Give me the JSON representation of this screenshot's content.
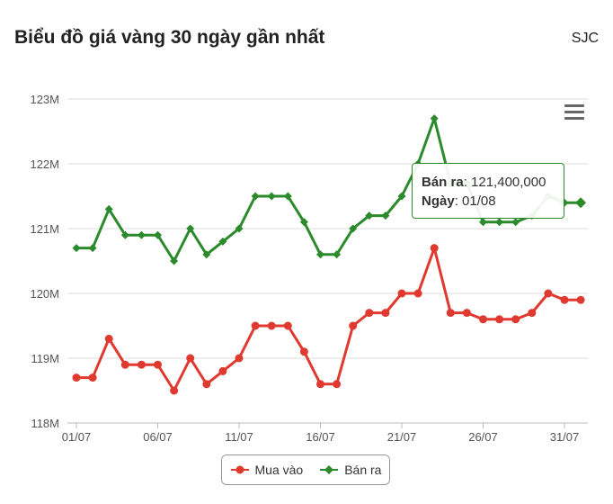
{
  "header": {
    "title": "Biểu đồ giá vàng 30 ngày gần nhất",
    "brand": "SJC"
  },
  "tooltip": {
    "series_label": "Bán ra",
    "value": "121,400,000",
    "date_label": "Ngày",
    "date": "01/08"
  },
  "colors": {
    "buy": "#e03a30",
    "sell": "#2b8a2b",
    "grid": "#dddddd",
    "axis_text": "#555555"
  },
  "chart_data": {
    "type": "line",
    "categories": [
      "01/07",
      "02/07",
      "03/07",
      "04/07",
      "05/07",
      "06/07",
      "07/07",
      "08/07",
      "09/07",
      "10/07",
      "11/07",
      "12/07",
      "13/07",
      "14/07",
      "15/07",
      "16/07",
      "17/07",
      "18/07",
      "19/07",
      "20/07",
      "21/07",
      "22/07",
      "23/07",
      "24/07",
      "25/07",
      "26/07",
      "27/07",
      "28/07",
      "29/07",
      "30/07",
      "31/07",
      "01/08"
    ],
    "x_tick_labels": [
      "01/07",
      "06/07",
      "11/07",
      "16/07",
      "21/07",
      "26/07",
      "31/07"
    ],
    "x_tick_indices": [
      0,
      5,
      10,
      15,
      20,
      25,
      30
    ],
    "series": [
      {
        "name": "Mua vào",
        "marker": "circle",
        "values": [
          118.7,
          118.7,
          119.3,
          118.9,
          118.9,
          118.9,
          118.5,
          119.0,
          118.6,
          118.8,
          119.0,
          119.5,
          119.5,
          119.5,
          119.1,
          118.6,
          118.6,
          119.5,
          119.7,
          119.7,
          120.0,
          120.0,
          120.7,
          119.7,
          119.7,
          119.6,
          119.6,
          119.6,
          119.7,
          120.0,
          119.9,
          119.9
        ]
      },
      {
        "name": "Bán ra",
        "marker": "diamond",
        "values": [
          120.7,
          120.7,
          121.3,
          120.9,
          120.9,
          120.9,
          120.5,
          121.0,
          120.6,
          120.8,
          121.0,
          121.5,
          121.5,
          121.5,
          121.1,
          120.6,
          120.6,
          121.0,
          121.2,
          121.2,
          121.5,
          122.0,
          122.7,
          121.7,
          121.7,
          121.1,
          121.1,
          121.1,
          121.2,
          121.5,
          121.4,
          121.4
        ]
      }
    ],
    "y_ticks": [
      118,
      119,
      120,
      121,
      122,
      123
    ],
    "y_tick_labels": [
      "118M",
      "119M",
      "120M",
      "121M",
      "122M",
      "123M"
    ],
    "ylim": [
      118,
      123
    ],
    "grid": true,
    "legend_position": "bottom-center"
  }
}
